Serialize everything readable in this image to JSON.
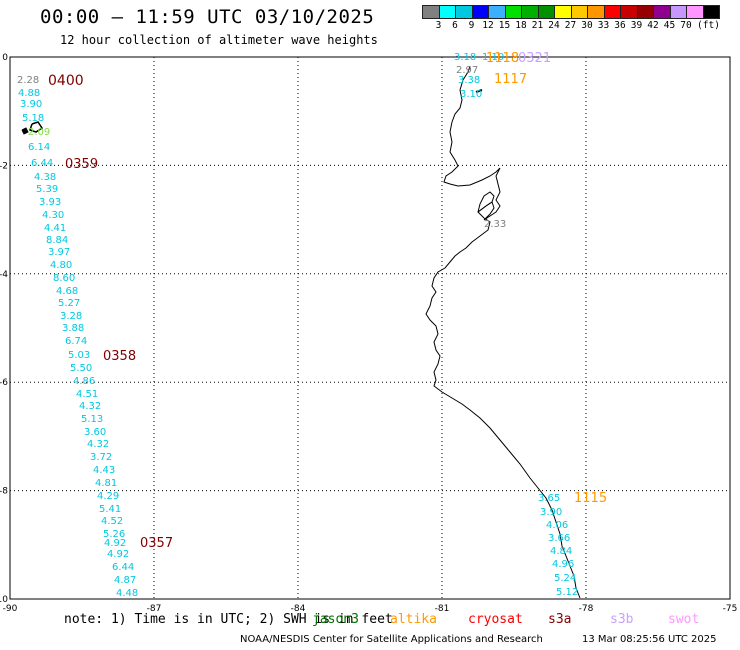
{
  "title": "00:00 — 11:59 UTC 03/10/2025",
  "subtitle": "12 hour collection of altimeter wave heights",
  "legend": {
    "colors": [
      "#808080",
      "#00ffff",
      "#00c8e0",
      "#0000ff",
      "#3cb0ff",
      "#00e000",
      "#00b000",
      "#009000",
      "#ffff00",
      "#ffc800",
      "#ff9600",
      "#ff0000",
      "#c80000",
      "#960000",
      "#900090",
      "#c896ff",
      "#ff96ff",
      "#000000"
    ],
    "labels": [
      "3",
      "6",
      "9",
      "12",
      "15",
      "18",
      "21",
      "24",
      "27",
      "30",
      "33",
      "36",
      "39",
      "42",
      "45",
      "70",
      "(ft)"
    ]
  },
  "map": {
    "lon_range": [
      -90,
      -75
    ],
    "lat_range": [
      -10,
      0
    ],
    "x_tick_labels": [
      "-90",
      "-87",
      "-84",
      "-81",
      "-78",
      "-75"
    ],
    "y_tick_labels": [
      "0",
      "-2",
      "-4",
      "-6",
      "-8",
      "-10"
    ],
    "grid": "dotted"
  },
  "time_labels": [
    {
      "text": "0400",
      "color": "#800000"
    },
    {
      "text": "0359",
      "color": "#800000"
    },
    {
      "text": "0358",
      "color": "#800000"
    },
    {
      "text": "0357",
      "color": "#800000"
    },
    {
      "text": "1118",
      "color": "#ff9900"
    },
    {
      "text": "0321",
      "color": "#c8a0ff"
    },
    {
      "text": "1117",
      "color": "#ff9900"
    },
    {
      "text": "1115",
      "color": "#ff9900"
    }
  ],
  "track_west": [
    {
      "v": "2.28",
      "c": "#808080"
    },
    {
      "v": "4.88",
      "c": "#00c8e0"
    },
    {
      "v": "3.90",
      "c": "#00c8e0"
    },
    {
      "v": "5.18",
      "c": "#00c8e0"
    },
    {
      "v": "2.09",
      "c": "#80e040"
    },
    {
      "v": "6.14",
      "c": "#00c8e0"
    },
    {
      "v": "6.44",
      "c": "#00c8e0"
    },
    {
      "v": "4.38",
      "c": "#00c8e0"
    },
    {
      "v": "5.39",
      "c": "#00c8e0"
    },
    {
      "v": "3.93",
      "c": "#00c8e0"
    },
    {
      "v": "4.30",
      "c": "#00c8e0"
    },
    {
      "v": "4.41",
      "c": "#00c8e0"
    },
    {
      "v": "8.84",
      "c": "#00c8e0"
    },
    {
      "v": "3.97",
      "c": "#00c8e0"
    },
    {
      "v": "4.80",
      "c": "#00c8e0"
    },
    {
      "v": "8.60",
      "c": "#00c8e0"
    },
    {
      "v": "4.68",
      "c": "#00c8e0"
    },
    {
      "v": "5.27",
      "c": "#00c8e0"
    },
    {
      "v": "3.28",
      "c": "#00c8e0"
    },
    {
      "v": "3.88",
      "c": "#00c8e0"
    },
    {
      "v": "6.74",
      "c": "#00c8e0"
    },
    {
      "v": "5.03",
      "c": "#00c8e0"
    },
    {
      "v": "5.50",
      "c": "#00c8e0"
    },
    {
      "v": "4.86",
      "c": "#00c8e0"
    },
    {
      "v": "4.51",
      "c": "#00c8e0"
    },
    {
      "v": "4.32",
      "c": "#00c8e0"
    },
    {
      "v": "5.13",
      "c": "#00c8e0"
    },
    {
      "v": "3.60",
      "c": "#00c8e0"
    },
    {
      "v": "4.32",
      "c": "#00c8e0"
    },
    {
      "v": "3.72",
      "c": "#00c8e0"
    },
    {
      "v": "4.43",
      "c": "#00c8e0"
    },
    {
      "v": "4.81",
      "c": "#00c8e0"
    },
    {
      "v": "4.29",
      "c": "#00c8e0"
    },
    {
      "v": "5.41",
      "c": "#00c8e0"
    },
    {
      "v": "4.52",
      "c": "#00c8e0"
    },
    {
      "v": "5.26",
      "c": "#00c8e0"
    },
    {
      "v": "4.92",
      "c": "#00c8e0"
    },
    {
      "v": "4.92",
      "c": "#00c8e0"
    },
    {
      "v": "6.44",
      "c": "#00c8e0"
    },
    {
      "v": "4.87",
      "c": "#00c8e0"
    },
    {
      "v": "4.48",
      "c": "#00c8e0"
    }
  ],
  "track_north": [
    {
      "v": "3.18",
      "c": "#00c8e0"
    },
    {
      "v": "1.10",
      "c": "#00c8e0"
    },
    {
      "v": "2.97",
      "c": "#808080"
    },
    {
      "v": "3.38",
      "c": "#00c8e0"
    },
    {
      "v": "3.10",
      "c": "#00c8e0"
    }
  ],
  "track_mid": [
    {
      "v": "2.33",
      "c": "#808080"
    }
  ],
  "track_south": [
    {
      "v": "3.65",
      "c": "#00c8e0"
    },
    {
      "v": "3.90",
      "c": "#00c8e0"
    },
    {
      "v": "4.06",
      "c": "#00c8e0"
    },
    {
      "v": "3.66",
      "c": "#00c8e0"
    },
    {
      "v": "4.84",
      "c": "#00c8e0"
    },
    {
      "v": "4.96",
      "c": "#00c8e0"
    },
    {
      "v": "5.24",
      "c": "#00c8e0"
    },
    {
      "v": "5.12",
      "c": "#00c8e0"
    }
  ],
  "note": "note: 1) Time is in UTC; 2) SWH is in feet",
  "satellites": [
    {
      "name": "jason3",
      "color": "#007000"
    },
    {
      "name": "altika",
      "color": "#ff9900"
    },
    {
      "name": "cryosat",
      "color": "#ff0000"
    },
    {
      "name": "s3a",
      "color": "#800000"
    },
    {
      "name": "s3b",
      "color": "#c8a0ff"
    },
    {
      "name": "swot",
      "color": "#ff96ff"
    }
  ],
  "credit": "NOAA/NESDIS Center for Satellite Applications and Research",
  "generated": "13 Mar 08:25:56 UTC 2025"
}
